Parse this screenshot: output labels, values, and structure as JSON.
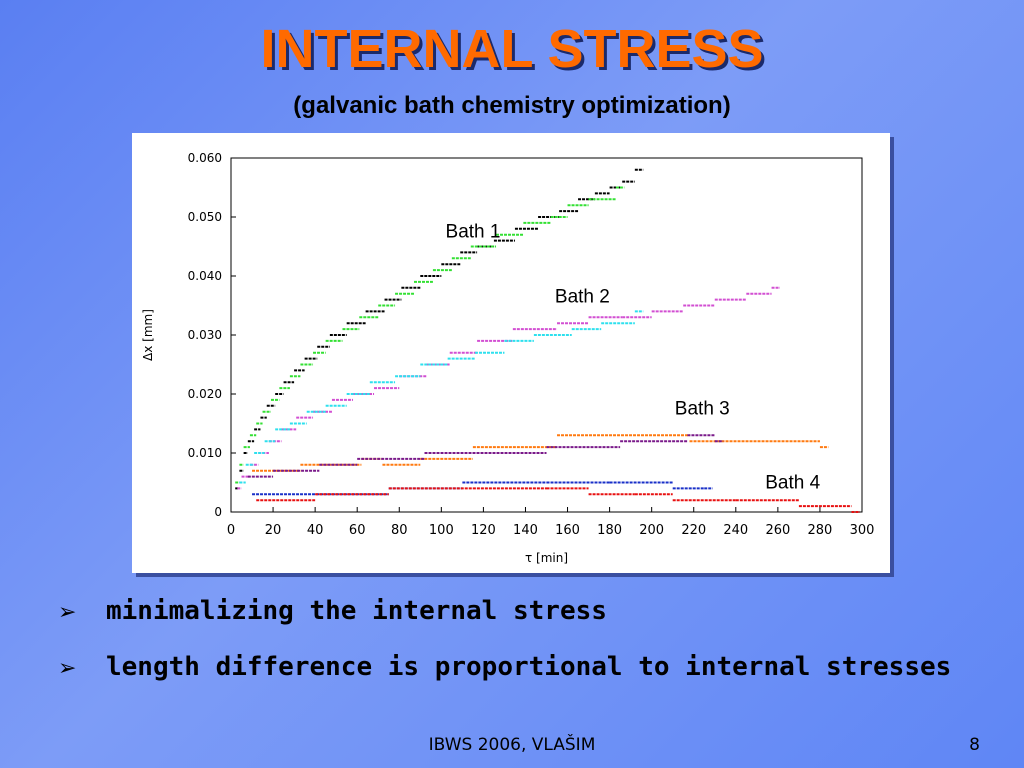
{
  "slide": {
    "title": "INTERNAL STRESS",
    "subtitle": "(galvanic bath chemistry optimization)",
    "bullets": [
      "minimalizing the internal stress",
      "length difference is proportional to internal stresses"
    ],
    "footer": "IBWS 2006, VLAŠIM",
    "page_number": "8"
  },
  "colors": {
    "title": "#ff6a00",
    "black": "#000000",
    "green": "#33e033",
    "magenta": "#d24fd2",
    "cyan": "#2ee0ee",
    "orange": "#ff7a10",
    "purple": "#7a1a8a",
    "blue": "#1a30c8",
    "red": "#e81010"
  },
  "chart_data": {
    "type": "scatter",
    "xlabel": "τ [min]",
    "ylabel": "Δx [mm]",
    "xlim": [
      0,
      300
    ],
    "ylim": [
      0,
      0.06
    ],
    "xticks": [
      "0",
      "20",
      "40",
      "60",
      "80",
      "100",
      "120",
      "140",
      "160",
      "180",
      "200",
      "220",
      "240",
      "260",
      "280",
      "300"
    ],
    "yticks": [
      "0",
      "0.010",
      "0.020",
      "0.030",
      "0.040",
      "0.050",
      "0.060"
    ],
    "annotations": [
      {
        "text": "Bath 1",
        "x": 102,
        "y": 0.0465
      },
      {
        "text": "Bath 2",
        "x": 154,
        "y": 0.0355
      },
      {
        "text": "Bath 3",
        "x": 211,
        "y": 0.0165
      },
      {
        "text": "Bath 4",
        "x": 254,
        "y": 0.004
      }
    ],
    "series": [
      {
        "color": "#000000",
        "group": "Bath 1",
        "points": [
          [
            2,
            0.004
          ],
          [
            4,
            0.007
          ],
          [
            6,
            0.01
          ],
          [
            8,
            0.012
          ],
          [
            11,
            0.014
          ],
          [
            14,
            0.016
          ],
          [
            17,
            0.018
          ],
          [
            21,
            0.02
          ],
          [
            25,
            0.022
          ],
          [
            30,
            0.024
          ],
          [
            35,
            0.026
          ],
          [
            41,
            0.028
          ],
          [
            47,
            0.03
          ],
          [
            55,
            0.032
          ],
          [
            64,
            0.034
          ],
          [
            73,
            0.036
          ],
          [
            81,
            0.038
          ],
          [
            90,
            0.04
          ],
          [
            100,
            0.042
          ],
          [
            109,
            0.044
          ],
          [
            117,
            0.045
          ],
          [
            125,
            0.046
          ],
          [
            135,
            0.048
          ],
          [
            146,
            0.05
          ],
          [
            156,
            0.051
          ],
          [
            165,
            0.053
          ],
          [
            173,
            0.054
          ],
          [
            180,
            0.055
          ],
          [
            186,
            0.056
          ],
          [
            192,
            0.058
          ]
        ]
      },
      {
        "color": "#33e033",
        "group": "Bath 1",
        "points": [
          [
            2,
            0.005
          ],
          [
            4,
            0.008
          ],
          [
            6,
            0.011
          ],
          [
            9,
            0.013
          ],
          [
            12,
            0.015
          ],
          [
            15,
            0.017
          ],
          [
            19,
            0.019
          ],
          [
            23,
            0.021
          ],
          [
            28,
            0.023
          ],
          [
            33,
            0.025
          ],
          [
            39,
            0.027
          ],
          [
            45,
            0.029
          ],
          [
            53,
            0.031
          ],
          [
            61,
            0.033
          ],
          [
            70,
            0.035
          ],
          [
            78,
            0.037
          ],
          [
            87,
            0.039
          ],
          [
            96,
            0.041
          ],
          [
            105,
            0.043
          ],
          [
            114,
            0.045
          ],
          [
            126,
            0.047
          ],
          [
            139,
            0.049
          ],
          [
            152,
            0.05
          ],
          [
            160,
            0.052
          ],
          [
            170,
            0.053
          ],
          [
            183,
            0.055
          ]
        ]
      },
      {
        "color": "#d24fd2",
        "group": "Bath 2",
        "points": [
          [
            3,
            0.004
          ],
          [
            5,
            0.006
          ],
          [
            9,
            0.008
          ],
          [
            13,
            0.01
          ],
          [
            18,
            0.012
          ],
          [
            24,
            0.014
          ],
          [
            31,
            0.016
          ],
          [
            39,
            0.017
          ],
          [
            48,
            0.019
          ],
          [
            58,
            0.02
          ],
          [
            68,
            0.021
          ],
          [
            80,
            0.023
          ],
          [
            93,
            0.025
          ],
          [
            104,
            0.027
          ],
          [
            117,
            0.029
          ],
          [
            134,
            0.031
          ],
          [
            155,
            0.032
          ],
          [
            170,
            0.033
          ],
          [
            186,
            0.033
          ],
          [
            200,
            0.034
          ],
          [
            215,
            0.035
          ],
          [
            230,
            0.036
          ],
          [
            245,
            0.037
          ],
          [
            257,
            0.038
          ]
        ]
      },
      {
        "color": "#2ee0ee",
        "group": "Bath 2",
        "points": [
          [
            4,
            0.005
          ],
          [
            7,
            0.008
          ],
          [
            11,
            0.01
          ],
          [
            16,
            0.012
          ],
          [
            21,
            0.014
          ],
          [
            28,
            0.015
          ],
          [
            36,
            0.017
          ],
          [
            45,
            0.018
          ],
          [
            55,
            0.02
          ],
          [
            66,
            0.022
          ],
          [
            78,
            0.023
          ],
          [
            90,
            0.025
          ],
          [
            103,
            0.026
          ],
          [
            116,
            0.027
          ],
          [
            130,
            0.029
          ],
          [
            144,
            0.03
          ],
          [
            162,
            0.031
          ],
          [
            176,
            0.032
          ],
          [
            192,
            0.034
          ]
        ]
      },
      {
        "color": "#ff7a10",
        "group": "Bath 3",
        "points": [
          [
            10,
            0.007
          ],
          [
            33,
            0.008
          ],
          [
            62,
            0.009
          ],
          [
            72,
            0.008
          ],
          [
            90,
            0.009
          ],
          [
            115,
            0.011
          ],
          [
            155,
            0.013
          ],
          [
            218,
            0.012
          ],
          [
            280,
            0.011
          ]
        ]
      },
      {
        "color": "#7a1a8a",
        "group": "Bath 3",
        "points": [
          [
            8,
            0.006
          ],
          [
            20,
            0.007
          ],
          [
            42,
            0.008
          ],
          [
            60,
            0.009
          ],
          [
            92,
            0.01
          ],
          [
            150,
            0.011
          ],
          [
            185,
            0.012
          ],
          [
            217,
            0.013
          ],
          [
            230,
            0.012
          ]
        ]
      },
      {
        "color": "#1a30c8",
        "group": "Bath 4",
        "points": [
          [
            10,
            0.003
          ],
          [
            48,
            0.003
          ],
          [
            75,
            0.004
          ],
          [
            110,
            0.005
          ],
          [
            150,
            0.005
          ],
          [
            180,
            0.005
          ],
          [
            210,
            0.004
          ],
          [
            225,
            0.004
          ]
        ]
      },
      {
        "color": "#e81010",
        "group": "Bath 4",
        "points": [
          [
            12,
            0.002
          ],
          [
            40,
            0.003
          ],
          [
            75,
            0.004
          ],
          [
            115,
            0.004
          ],
          [
            150,
            0.004
          ],
          [
            170,
            0.003
          ],
          [
            192,
            0.003
          ],
          [
            210,
            0.002
          ],
          [
            240,
            0.002
          ],
          [
            270,
            0.001
          ],
          [
            295,
            0.0
          ]
        ]
      }
    ]
  }
}
